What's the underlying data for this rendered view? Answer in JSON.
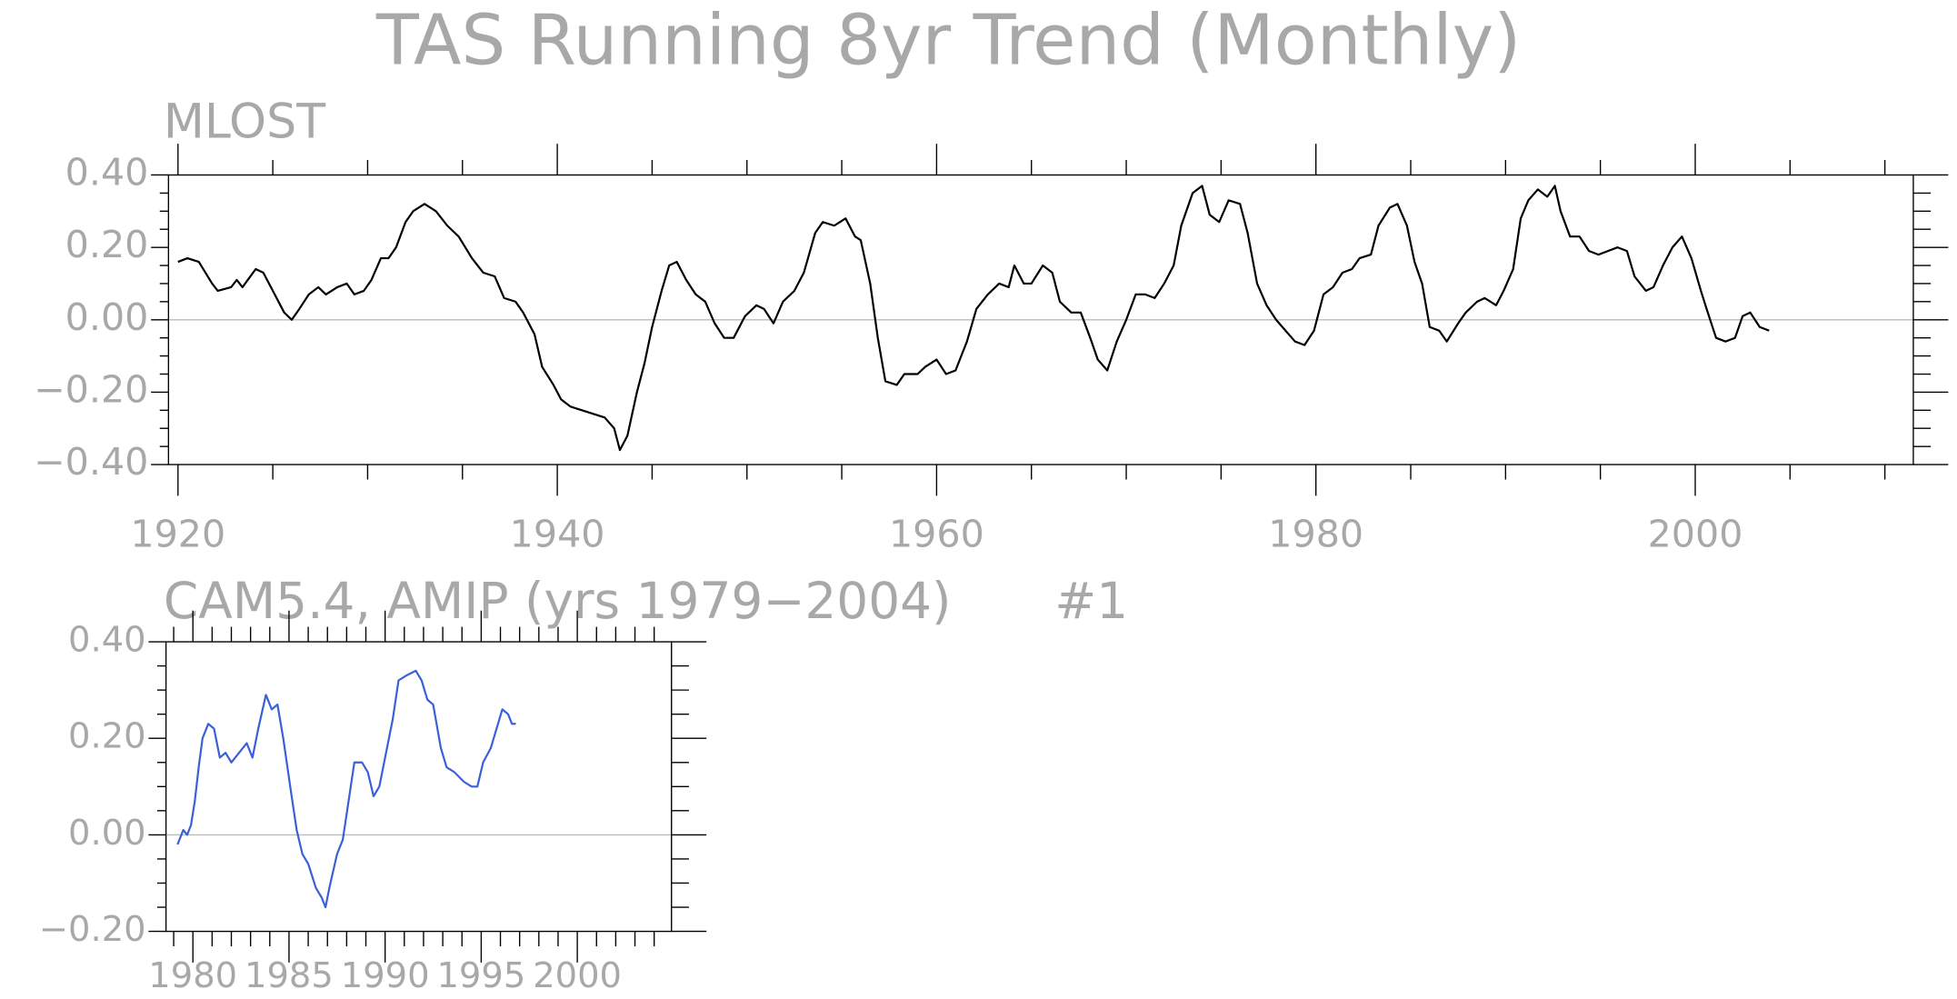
{
  "chart_data": [
    {
      "type": "line",
      "title": "TAS Running 8yr Trend (Monthly)",
      "subtitle": "MLOST",
      "color": "#000000",
      "xlim": [
        1919.5,
        2011.5
      ],
      "xticks": [
        1920,
        1940,
        1960,
        1980,
        2000
      ],
      "xminorticks": [
        1925,
        1930,
        1935,
        1945,
        1950,
        1955,
        1965,
        1970,
        1975,
        1985,
        1990,
        1995,
        2005,
        2010
      ],
      "ylim": [
        -0.4,
        0.4
      ],
      "yticks": [
        {
          "value": 0.4,
          "label": "0.40"
        },
        {
          "value": 0.2,
          "label": "0.20"
        },
        {
          "value": 0,
          "label": "0.00"
        },
        {
          "value": -0.2,
          "label": "−0.20"
        },
        {
          "value": -0.4,
          "label": "−0.40"
        }
      ],
      "yminorticks": [
        0.35,
        0.3,
        0.25,
        0.15,
        0.1,
        0.05,
        -0.05,
        -0.1,
        -0.15,
        -0.25,
        -0.3,
        -0.35
      ],
      "reference_line": 0,
      "x": [
        1920,
        1920.5,
        1921.1,
        1921.8,
        1922.1,
        1922.8,
        1923.1,
        1923.4,
        1924.1,
        1924.5,
        1925,
        1925.6,
        1926,
        1926.4,
        1926.9,
        1927.4,
        1927.8,
        1928.4,
        1928.9,
        1929.3,
        1929.8,
        1930.2,
        1930.7,
        1931.1,
        1931.5,
        1932,
        1932.4,
        1933,
        1933.6,
        1934.2,
        1934.8,
        1935.5,
        1936.1,
        1936.7,
        1937.2,
        1937.8,
        1938.2,
        1938.8,
        1939.2,
        1939.8,
        1940.2,
        1940.7,
        1941.3,
        1941.9,
        1942.5,
        1943,
        1943.3,
        1943.7,
        1944.2,
        1944.6,
        1945,
        1945.5,
        1945.9,
        1946.3,
        1946.8,
        1947.3,
        1947.8,
        1948.3,
        1948.8,
        1949.3,
        1949.9,
        1950.5,
        1950.9,
        1951.4,
        1951.9,
        1952.5,
        1953,
        1953.6,
        1954,
        1954.6,
        1955.2,
        1955.7,
        1956,
        1956.5,
        1956.9,
        1957.3,
        1957.9,
        1958.3,
        1959,
        1959.4,
        1960,
        1960.5,
        1961,
        1961.6,
        1962.1,
        1962.7,
        1963.3,
        1963.8,
        1964.1,
        1964.6,
        1965,
        1965.6,
        1966.1,
        1966.5,
        1967.1,
        1967.6,
        1968.1,
        1968.5,
        1969,
        1969.5,
        1970,
        1970.5,
        1971,
        1971.5,
        1972,
        1972.5,
        1972.9,
        1973.5,
        1974,
        1974.4,
        1974.9,
        1975.4,
        1976,
        1976.4,
        1976.9,
        1977.4,
        1977.9,
        1978.4,
        1978.9,
        1979.4,
        1979.9,
        1980.4,
        1980.9,
        1981.4,
        1981.9,
        1982.3,
        1982.9,
        1983.3,
        1983.9,
        1984.3,
        1984.8,
        1985.2,
        1985.6,
        1986,
        1986.5,
        1986.9,
        1987.5,
        1987.9,
        1988.5,
        1988.9,
        1989.5,
        1989.9,
        1990.4,
        1990.8,
        1991.2,
        1991.7,
        1992.2,
        1992.6,
        1992.9,
        1993.4,
        1993.9,
        1994.4,
        1994.9,
        1995.4,
        1995.9,
        1996.4,
        1996.8,
        1997.4,
        1997.8,
        1998.3,
        1998.8,
        1999.3,
        1999.8,
        2000.3,
        2000.6,
        2001.1,
        2001.6,
        2002.1,
        2002.5,
        2002.9,
        2003.4,
        2003.9
      ],
      "values": [
        0.16,
        0.17,
        0.16,
        0.1,
        0.08,
        0.09,
        0.11,
        0.09,
        0.14,
        0.13,
        0.08,
        0.02,
        0,
        0.03,
        0.07,
        0.09,
        0.07,
        0.09,
        0.1,
        0.07,
        0.08,
        0.11,
        0.17,
        0.17,
        0.2,
        0.27,
        0.3,
        0.32,
        0.3,
        0.26,
        0.23,
        0.17,
        0.13,
        0.12,
        0.06,
        0.05,
        0.02,
        -0.04,
        -0.13,
        -0.18,
        -0.22,
        -0.24,
        -0.25,
        -0.26,
        -0.27,
        -0.3,
        -0.36,
        -0.32,
        -0.2,
        -0.12,
        -0.02,
        0.08,
        0.15,
        0.16,
        0.11,
        0.07,
        0.05,
        -0.01,
        -0.05,
        -0.05,
        0.01,
        0.04,
        0.03,
        -0.01,
        0.05,
        0.08,
        0.13,
        0.24,
        0.27,
        0.26,
        0.28,
        0.23,
        0.22,
        0.1,
        -0.05,
        -0.17,
        -0.18,
        -0.15,
        -0.15,
        -0.13,
        -0.11,
        -0.15,
        -0.14,
        -0.06,
        0.03,
        0.07,
        0.1,
        0.09,
        0.15,
        0.1,
        0.1,
        0.15,
        0.13,
        0.05,
        0.02,
        0.02,
        -0.05,
        -0.11,
        -0.14,
        -0.06,
        0,
        0.07,
        0.07,
        0.06,
        0.1,
        0.15,
        0.26,
        0.35,
        0.37,
        0.29,
        0.27,
        0.33,
        0.32,
        0.24,
        0.1,
        0.04,
        0,
        -0.03,
        -0.06,
        -0.07,
        -0.03,
        0.07,
        0.09,
        0.13,
        0.14,
        0.17,
        0.18,
        0.26,
        0.31,
        0.32,
        0.26,
        0.16,
        0.1,
        -0.02,
        -0.03,
        -0.06,
        -0.01,
        0.02,
        0.05,
        0.06,
        0.04,
        0.08,
        0.14,
        0.28,
        0.33,
        0.36,
        0.34,
        0.37,
        0.3,
        0.23,
        0.23,
        0.19,
        0.18,
        0.19,
        0.2,
        0.19,
        0.12,
        0.08,
        0.09,
        0.15,
        0.2,
        0.23,
        0.17,
        0.08,
        0.03,
        -0.05,
        -0.06,
        -0.05,
        0.01,
        0.02,
        -0.02,
        -0.03
      ]
    },
    {
      "type": "line",
      "subtitle": "CAM5.4, AMIP (yrs 1979−2004)",
      "annotation": "#1",
      "color": "#3a5fd9",
      "xlim": [
        1978.6,
        2004.9
      ],
      "xticks": [
        1980,
        1985,
        1990,
        1995,
        2000
      ],
      "xminorticks": [
        1979,
        1981,
        1982,
        1983,
        1984,
        1986,
        1987,
        1988,
        1989,
        1991,
        1992,
        1993,
        1994,
        1996,
        1997,
        1998,
        1999,
        2001,
        2002,
        2003,
        2004
      ],
      "ylim": [
        -0.2,
        0.4
      ],
      "yticks": [
        {
          "value": 0.4,
          "label": "0.40"
        },
        {
          "value": 0.2,
          "label": "0.20"
        },
        {
          "value": 0,
          "label": "0.00"
        },
        {
          "value": -0.2,
          "label": "−0.20"
        }
      ],
      "yminorticks": [
        0.35,
        0.3,
        0.25,
        0.15,
        0.1,
        0.05,
        -0.05,
        -0.1,
        -0.15
      ],
      "reference_line": 0,
      "x": [
        1979.2,
        1979.5,
        1979.7,
        1979.9,
        1980.1,
        1980.3,
        1980.5,
        1980.8,
        1981.1,
        1981.4,
        1981.7,
        1982,
        1982.4,
        1982.8,
        1983.1,
        1983.4,
        1983.8,
        1984.1,
        1984.4,
        1984.7,
        1985.1,
        1985.4,
        1985.7,
        1986,
        1986.4,
        1986.7,
        1986.9,
        1987.1,
        1987.5,
        1987.8,
        1988.1,
        1988.4,
        1988.8,
        1989.1,
        1989.4,
        1989.7,
        1990.1,
        1990.4,
        1990.7,
        1991.1,
        1991.6,
        1991.9,
        1992.2,
        1992.5,
        1992.9,
        1993.2,
        1993.6,
        1994.1,
        1994.5,
        1994.8,
        1995.1,
        1995.5,
        1995.8,
        1996.1,
        1996.4,
        1996.6,
        1996.8
      ],
      "values": [
        -0.02,
        0.01,
        0,
        0.02,
        0.07,
        0.14,
        0.2,
        0.23,
        0.22,
        0.16,
        0.17,
        0.15,
        0.17,
        0.19,
        0.16,
        0.22,
        0.29,
        0.26,
        0.27,
        0.2,
        0.09,
        0.01,
        -0.04,
        -0.06,
        -0.11,
        -0.13,
        -0.15,
        -0.11,
        -0.04,
        -0.01,
        0.07,
        0.15,
        0.15,
        0.13,
        0.08,
        0.1,
        0.18,
        0.24,
        0.32,
        0.33,
        0.34,
        0.32,
        0.28,
        0.27,
        0.18,
        0.14,
        0.13,
        0.11,
        0.1,
        0.1,
        0.15,
        0.18,
        0.22,
        0.26,
        0.25,
        0.23,
        0.23
      ]
    }
  ]
}
